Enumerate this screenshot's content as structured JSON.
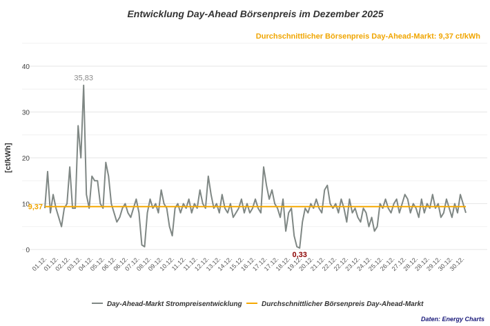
{
  "chart_data": {
    "type": "line",
    "title": "Entwicklung Day-Ahead Börsenpreis im Dezember 2025",
    "subtitle": "Durchschnittlicher Börsenpreis Day-Ahead-Markt: 9,37 ct/kWh",
    "ylabel": "[ct/kWh]",
    "xlabel": "",
    "ylim": [
      -2,
      45
    ],
    "yticks": [
      0,
      10,
      20,
      30,
      40
    ],
    "ytick_labels": [
      "0",
      "10",
      "20",
      "30",
      "40"
    ],
    "grid": true,
    "x_tick_labels": [
      "01.12.",
      "01.12.",
      "02.12.",
      "03.12.",
      "04.12.",
      "05.12.",
      "06.12.",
      "06.12.",
      "07.12.",
      "08.12.",
      "09.12.",
      "10.12.",
      "11.12.",
      "11.12.",
      "12.12.",
      "13.12.",
      "14.12.",
      "15.12.",
      "16.12.",
      "17.12.",
      "17.12.",
      "18.12.",
      "19.12.",
      "20.12.",
      "21.12.",
      "22.12.",
      "22.12.",
      "23.12.",
      "24.12.",
      "25.12.",
      "26.12.",
      "27.12.",
      "28.12.",
      "28.12.",
      "29.12.",
      "30.12.",
      "30.12."
    ],
    "series": [
      {
        "name": "Day-Ahead-Markt Strompreisentwicklung",
        "color": "#7f8784",
        "values": [
          9,
          17,
          8,
          12,
          9,
          7,
          5,
          9,
          10,
          18,
          9,
          9,
          27,
          20,
          35.83,
          12,
          9,
          16,
          15,
          15,
          10,
          9,
          19,
          16,
          10,
          8,
          6,
          7,
          9,
          10,
          8,
          7,
          9,
          11,
          8,
          1,
          0.6,
          8,
          11,
          9,
          10,
          8,
          13,
          10,
          9,
          5,
          3,
          9,
          10,
          8,
          10,
          9,
          11,
          8,
          10,
          9,
          13,
          10,
          9,
          16,
          12,
          9,
          10,
          8,
          12,
          9,
          8,
          10,
          7,
          8,
          9,
          11,
          8,
          10,
          8,
          9,
          11,
          9,
          8,
          18,
          14,
          11,
          13,
          10,
          9,
          7,
          11,
          4,
          8,
          9,
          3,
          0.6,
          0.33,
          6,
          9,
          8,
          10,
          9,
          11,
          9,
          8,
          13,
          14,
          10,
          9,
          10,
          8,
          11,
          9,
          6,
          11,
          8,
          9,
          7,
          6,
          9,
          8,
          5,
          7,
          4,
          5,
          10,
          9,
          11,
          9,
          8,
          10,
          11,
          8,
          10,
          12,
          11,
          8,
          10,
          9,
          7,
          11,
          8,
          10,
          9,
          12,
          9,
          10,
          7,
          8,
          11,
          9,
          7,
          10,
          8,
          12,
          10,
          8
        ]
      },
      {
        "name": "Durchschnittlicher Börsenpreis Day-Ahead-Markt",
        "color": "#f5a800",
        "value": 9.37
      }
    ],
    "annotations": {
      "max_label": "35,83",
      "min_label": "0,33",
      "mean_label": "9,37"
    },
    "legend_position": "bottom",
    "source": "Daten: Energy Charts"
  },
  "colors": {
    "title": "#333333",
    "subtitle": "#f0a500",
    "max_label": "#8a8a8a",
    "min_label": "#8b0000",
    "source": "#1a1a7a"
  }
}
